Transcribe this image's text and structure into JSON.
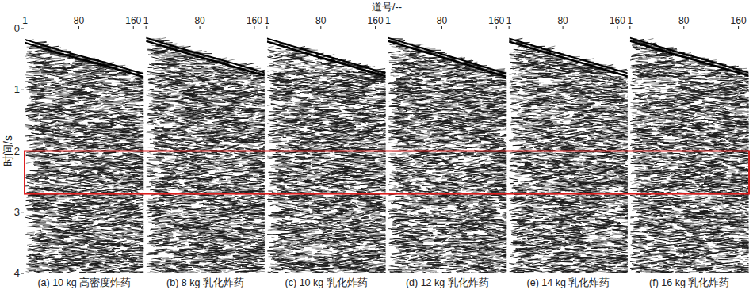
{
  "chart_data": {
    "type": "seismic_section",
    "x_label": "道号/--",
    "y_label": "时间/s",
    "xlim": [
      1,
      175
    ],
    "xticks": [
      1,
      80,
      160
    ],
    "ylim": [
      0,
      4
    ],
    "yticks": [
      0,
      1,
      2,
      3,
      4
    ],
    "highlight": {
      "ylim": [
        2.0,
        2.7
      ],
      "color": "#e02020"
    },
    "panels": [
      {
        "label": "(a) 10 kg 高密度炸药",
        "first_break": {
          "x": [
            1,
            60,
            120,
            175
          ],
          "y": [
            0.18,
            0.38,
            0.56,
            0.74
          ]
        }
      },
      {
        "label": "(b) 8 kg 乳化炸药",
        "first_break": {
          "x": [
            1,
            60,
            120,
            175
          ],
          "y": [
            0.15,
            0.35,
            0.54,
            0.72
          ]
        }
      },
      {
        "label": "(c) 10 kg 乳化炸药",
        "first_break": {
          "x": [
            1,
            60,
            120,
            175
          ],
          "y": [
            0.16,
            0.36,
            0.55,
            0.73
          ]
        }
      },
      {
        "label": "(d) 12 kg 乳化炸药",
        "first_break": {
          "x": [
            1,
            60,
            120,
            175
          ],
          "y": [
            0.15,
            0.35,
            0.55,
            0.74
          ]
        }
      },
      {
        "label": "(e) 14 kg 乳化炸药",
        "first_break": {
          "x": [
            1,
            60,
            120,
            175
          ],
          "y": [
            0.16,
            0.36,
            0.55,
            0.73
          ]
        }
      },
      {
        "label": "(f) 16 kg 乳化炸药",
        "first_break": {
          "x": [
            1,
            60,
            120,
            175
          ],
          "y": [
            0.15,
            0.35,
            0.54,
            0.72
          ]
        }
      }
    ]
  }
}
